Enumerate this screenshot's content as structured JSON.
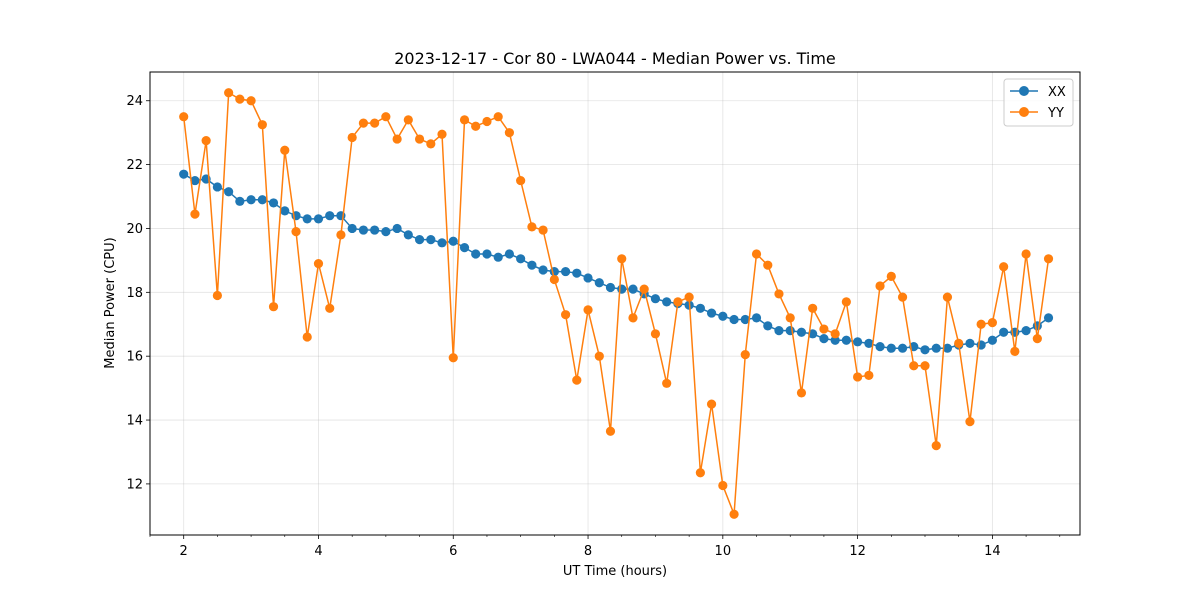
{
  "chart_data": {
    "type": "line",
    "title": "2023-12-17 - Cor 80 - LWA044 - Median Power vs. Time",
    "xlabel": "UT Time (hours)",
    "ylabel": "Median Power (CPU)",
    "xlim": [
      1.5,
      15.3
    ],
    "ylim": [
      10.4,
      24.9
    ],
    "xticks": [
      2,
      4,
      6,
      8,
      10,
      12,
      14
    ],
    "yticks": [
      12,
      14,
      16,
      18,
      20,
      22,
      24
    ],
    "grid": true,
    "legend_position": "top-right",
    "x": [
      2.0,
      2.167,
      2.333,
      2.5,
      2.667,
      2.833,
      3.0,
      3.167,
      3.333,
      3.5,
      3.667,
      3.833,
      4.0,
      4.167,
      4.333,
      4.5,
      4.667,
      4.833,
      5.0,
      5.167,
      5.333,
      5.5,
      5.667,
      5.833,
      6.0,
      6.167,
      6.333,
      6.5,
      6.667,
      6.833,
      7.0,
      7.167,
      7.333,
      7.5,
      7.667,
      7.833,
      8.0,
      8.167,
      8.333,
      8.5,
      8.667,
      8.833,
      9.0,
      9.167,
      9.333,
      9.5,
      9.667,
      9.833,
      10.0,
      10.167,
      10.333,
      10.5,
      10.667,
      10.833,
      11.0,
      11.167,
      11.333,
      11.5,
      11.667,
      11.833,
      12.0,
      12.167,
      12.333,
      12.5,
      12.667,
      12.833,
      13.0,
      13.167,
      13.333,
      13.5,
      13.667,
      13.833,
      14.0,
      14.167,
      14.333,
      14.5,
      14.667,
      14.833
    ],
    "series": [
      {
        "name": "XX",
        "color": "#1f77b4",
        "values": [
          21.7,
          21.5,
          21.55,
          21.3,
          21.15,
          20.85,
          20.9,
          20.9,
          20.8,
          20.55,
          20.4,
          20.3,
          20.3,
          20.4,
          20.4,
          20.0,
          19.95,
          19.95,
          19.9,
          20.0,
          19.8,
          19.65,
          19.65,
          19.55,
          19.6,
          19.4,
          19.2,
          19.2,
          19.1,
          19.2,
          19.05,
          18.85,
          18.7,
          18.65,
          18.65,
          18.6,
          18.45,
          18.3,
          18.15,
          18.1,
          18.1,
          17.95,
          17.8,
          17.7,
          17.65,
          17.6,
          17.5,
          17.35,
          17.25,
          17.15,
          17.15,
          17.2,
          16.95,
          16.8,
          16.8,
          16.75,
          16.7,
          16.55,
          16.5,
          16.5,
          16.45,
          16.4,
          16.3,
          16.25,
          16.25,
          16.3,
          16.2,
          16.25,
          16.25,
          16.35,
          16.4,
          16.35,
          16.5,
          16.75,
          16.75,
          16.8,
          16.95,
          17.2
        ]
      },
      {
        "name": "YY",
        "color": "#ff7f0e",
        "values": [
          23.5,
          20.45,
          22.75,
          17.9,
          24.25,
          24.05,
          24.0,
          23.25,
          17.55,
          22.45,
          19.9,
          16.6,
          18.9,
          17.5,
          19.8,
          22.85,
          23.3,
          23.3,
          23.5,
          22.8,
          23.4,
          22.8,
          22.65,
          22.95,
          15.95,
          23.4,
          23.2,
          23.35,
          23.5,
          23.0,
          21.5,
          20.05,
          19.95,
          18.4,
          17.3,
          15.25,
          17.45,
          16.0,
          13.65,
          19.05,
          17.2,
          18.1,
          16.7,
          15.15,
          17.7,
          17.85,
          12.35,
          14.5,
          11.95,
          11.05,
          16.05,
          19.2,
          18.85,
          17.95,
          17.2,
          14.85,
          17.5,
          16.85,
          16.7,
          17.7,
          15.35,
          15.4,
          18.2,
          18.5,
          17.85,
          15.7,
          15.7,
          13.2,
          17.85,
          16.4,
          13.95,
          17.0,
          17.05,
          18.8,
          16.15,
          19.2,
          16.55,
          19.05
        ]
      }
    ]
  }
}
